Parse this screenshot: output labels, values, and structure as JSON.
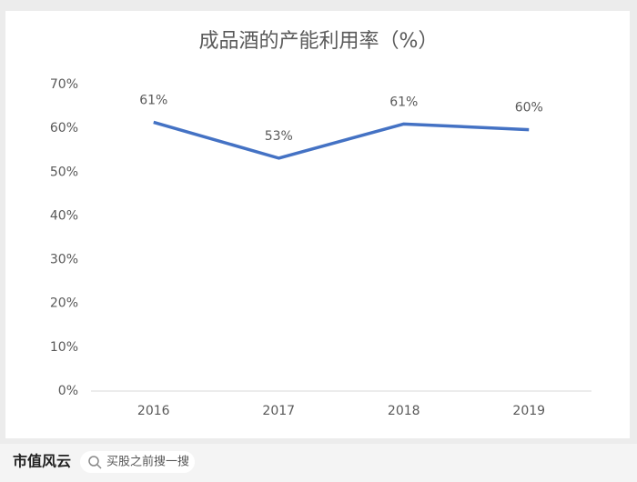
{
  "chart_data": {
    "type": "line",
    "title": "成品酒的产能利用率（%）",
    "categories": [
      "2016",
      "2017",
      "2018",
      "2019"
    ],
    "values": [
      61.4,
      53.2,
      61.0,
      59.7
    ],
    "value_labels": [
      "61%",
      "53%",
      "61%",
      "60%"
    ],
    "color": "#4472c4",
    "ylim": [
      0,
      70
    ],
    "yticks": [
      {
        "value": 0,
        "label": "0%"
      },
      {
        "value": 10,
        "label": "10%"
      },
      {
        "value": 20,
        "label": "20%"
      },
      {
        "value": 30,
        "label": "30%"
      },
      {
        "value": 40,
        "label": "40%"
      },
      {
        "value": 50,
        "label": "50%"
      },
      {
        "value": 60,
        "label": "60%"
      },
      {
        "value": 70,
        "label": "70%"
      }
    ],
    "grid": false
  },
  "footer": {
    "brand": "市值风云",
    "search": "买股之前搜一搜"
  }
}
